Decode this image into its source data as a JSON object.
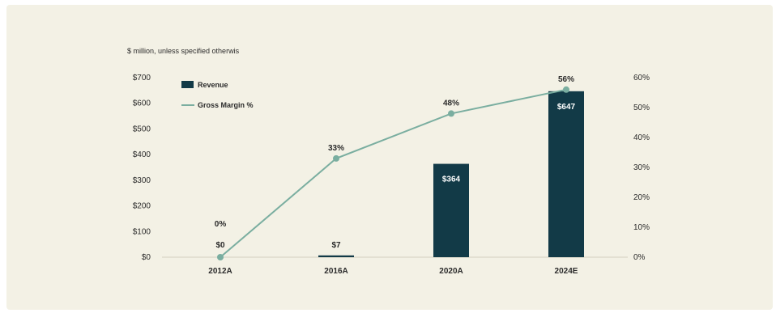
{
  "chart_data": {
    "type": "bar",
    "subtitle": "$ million, unless specified otherwis",
    "categories": [
      "2012A",
      "2016A",
      "2020A",
      "2024E"
    ],
    "series": [
      {
        "name": "Revenue",
        "type": "bar",
        "axis": "left",
        "values": [
          0,
          7,
          364,
          647
        ],
        "labels": [
          "$0",
          "$7",
          "$364",
          "$647"
        ],
        "color": "#123a47"
      },
      {
        "name": "Gross Margin %",
        "type": "line",
        "axis": "right",
        "values": [
          0,
          33,
          48,
          56
        ],
        "labels": [
          "0%",
          "33%",
          "48%",
          "56%"
        ],
        "color": "#7aaea0"
      }
    ],
    "left_axis": {
      "ylim": [
        0,
        700
      ],
      "ticks": [
        "$0",
        "$100",
        "$200",
        "$300",
        "$400",
        "$500",
        "$600",
        "$700"
      ]
    },
    "right_axis": {
      "ylim": [
        0,
        60
      ],
      "ticks": [
        "0%",
        "10%",
        "20%",
        "30%",
        "40%",
        "50%",
        "60%"
      ]
    },
    "grid": false,
    "legend_position": "top-left"
  }
}
